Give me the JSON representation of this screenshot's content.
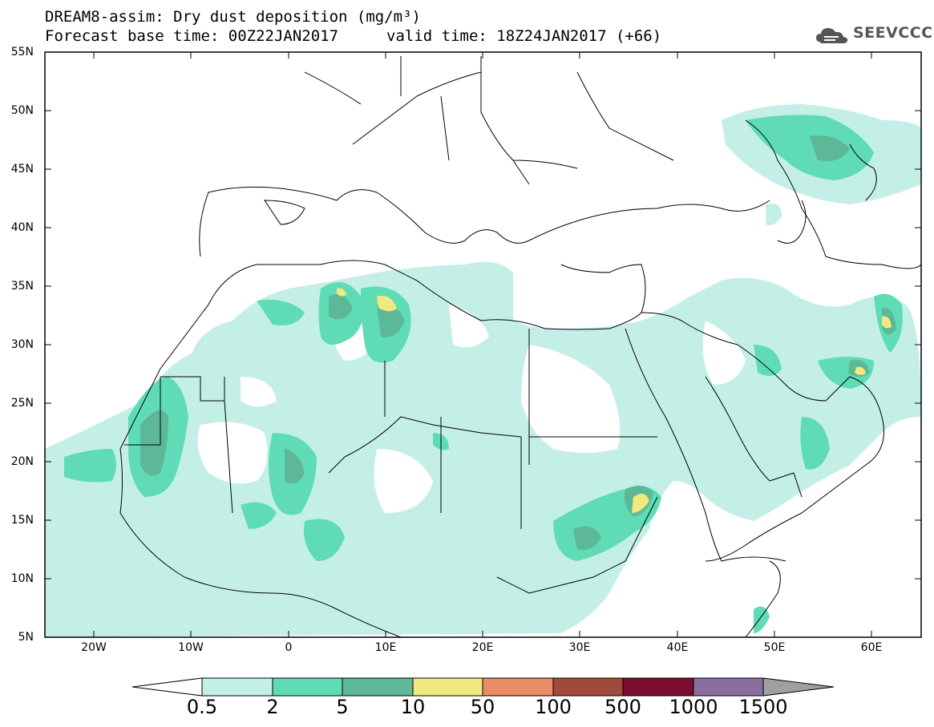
{
  "header": {
    "line1": "DREAM8-assim: Dry dust deposition (mg/m³)",
    "line2": "Forecast base time: 00Z22JAN2017",
    "line3": "valid time: 18Z24JAN2017 (+66)",
    "logo_text": "SEEVCCC"
  },
  "map": {
    "lat_labels": [
      "55N",
      "50N",
      "45N",
      "40N",
      "35N",
      "30N",
      "25N",
      "20N",
      "15N",
      "10N",
      "5N"
    ],
    "lon_labels": [
      "20W",
      "10W",
      "0",
      "10E",
      "20E",
      "30E",
      "40E",
      "50E",
      "60E"
    ]
  },
  "colorbar": {
    "labels": [
      "0.5",
      "2",
      "5",
      "10",
      "50",
      "100",
      "500",
      "1000",
      "1500"
    ],
    "colors": [
      "#c4efe6",
      "#5fdcb6",
      "#5cb896",
      "#f2e880",
      "#e98d68",
      "#a04a3c",
      "#7a0d2e",
      "#8a6ea0",
      "#a0a0a0"
    ]
  }
}
